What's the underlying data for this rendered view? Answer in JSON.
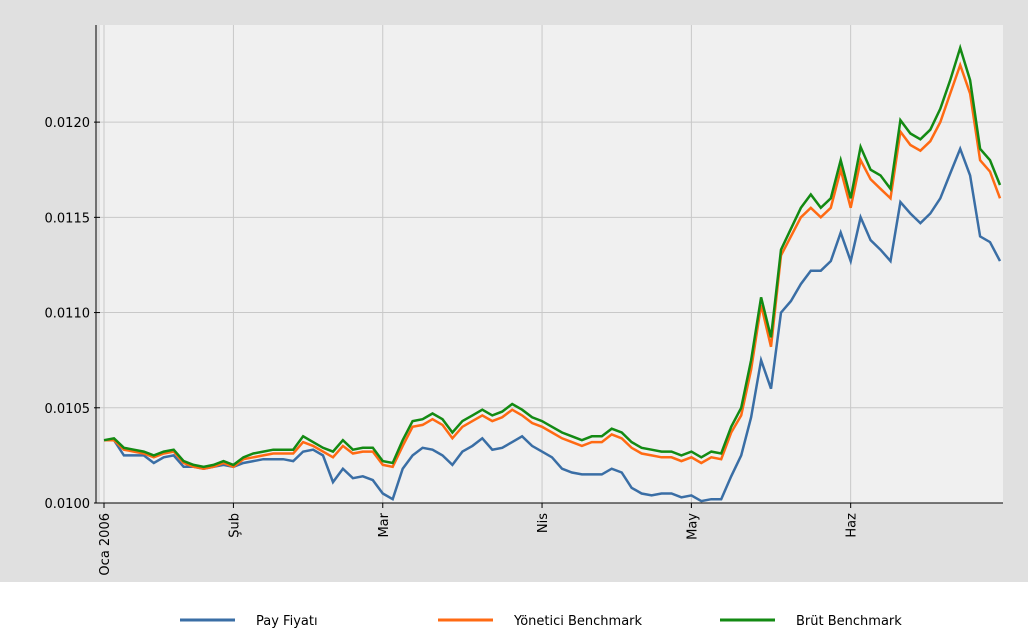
{
  "chart_data": {
    "type": "line",
    "categories": [
      "Oca 2006",
      null,
      null,
      null,
      null,
      null,
      null,
      null,
      null,
      null,
      null,
      null,
      null,
      "Şub",
      null,
      null,
      null,
      null,
      null,
      null,
      null,
      null,
      null,
      null,
      null,
      null,
      null,
      null,
      "Mar",
      null,
      null,
      null,
      null,
      null,
      null,
      null,
      null,
      null,
      null,
      null,
      null,
      null,
      null,
      null,
      "Nis",
      null,
      null,
      null,
      null,
      null,
      null,
      null,
      null,
      null,
      null,
      null,
      null,
      null,
      null,
      "May",
      null,
      null,
      null,
      null,
      null,
      null,
      null,
      null,
      null,
      null,
      null,
      null,
      null,
      null,
      null,
      "Haz",
      null,
      null,
      null,
      null,
      null,
      null,
      null,
      null,
      null,
      null,
      null,
      null,
      null,
      null,
      null
    ],
    "series": [
      {
        "name": "Pay Fiyatı",
        "color": "#3a6ea5",
        "values": [
          0.01033,
          0.01033,
          0.01025,
          0.01025,
          0.01025,
          0.01021,
          0.01024,
          0.01025,
          0.01019,
          0.01019,
          0.01018,
          0.01019,
          0.0102,
          0.01019,
          0.01021,
          0.01022,
          0.01023,
          0.01023,
          0.01023,
          0.01022,
          0.01027,
          0.01028,
          0.01025,
          0.01011,
          0.01018,
          0.01013,
          0.01014,
          0.01012,
          0.01005,
          0.01002,
          0.01018,
          0.01025,
          0.01029,
          0.01028,
          0.01025,
          0.0102,
          0.01027,
          0.0103,
          0.01034,
          0.01028,
          0.01029,
          0.01032,
          0.01035,
          0.0103,
          0.01027,
          0.01024,
          0.01018,
          0.01016,
          0.01015,
          0.01015,
          0.01015,
          0.01018,
          0.01016,
          0.01008,
          0.01005,
          0.01004,
          0.01005,
          0.01005,
          0.01003,
          0.01004,
          0.01001,
          0.01002,
          0.01002,
          0.01014,
          0.01025,
          0.01045,
          0.01075,
          0.0106,
          0.011,
          0.01106,
          0.01115,
          0.01122,
          0.01122,
          0.01127,
          0.01142,
          0.01127,
          0.0115,
          0.01138,
          0.01133,
          0.01127,
          0.01158,
          0.01152,
          0.01147,
          0.01152,
          0.0116,
          0.01173,
          0.01186,
          0.01172,
          0.0114,
          0.01137,
          0.01127
        ]
      },
      {
        "name": "Yönetici Benchmark",
        "color": "#ff6a13",
        "values": [
          0.01033,
          0.01033,
          0.01028,
          0.01027,
          0.01026,
          0.01024,
          0.01026,
          0.01027,
          0.01021,
          0.01019,
          0.01018,
          0.01019,
          0.01021,
          0.01019,
          0.01023,
          0.01024,
          0.01025,
          0.01026,
          0.01026,
          0.01026,
          0.01032,
          0.0103,
          0.01027,
          0.01024,
          0.0103,
          0.01026,
          0.01027,
          0.01027,
          0.0102,
          0.01019,
          0.0103,
          0.0104,
          0.01041,
          0.01044,
          0.01041,
          0.01034,
          0.0104,
          0.01043,
          0.01046,
          0.01043,
          0.01045,
          0.01049,
          0.01046,
          0.01042,
          0.0104,
          0.01037,
          0.01034,
          0.01032,
          0.0103,
          0.01032,
          0.01032,
          0.01036,
          0.01034,
          0.01029,
          0.01026,
          0.01025,
          0.01024,
          0.01024,
          0.01022,
          0.01024,
          0.01021,
          0.01024,
          0.01023,
          0.01037,
          0.01046,
          0.0107,
          0.01104,
          0.01082,
          0.0113,
          0.0114,
          0.0115,
          0.01155,
          0.0115,
          0.01155,
          0.01175,
          0.01155,
          0.0118,
          0.0117,
          0.01165,
          0.0116,
          0.01195,
          0.01188,
          0.01185,
          0.0119,
          0.012,
          0.01215,
          0.0123,
          0.01215,
          0.0118,
          0.01174,
          0.0116
        ]
      },
      {
        "name": "Brüt Benchmark",
        "color": "#138a13",
        "values": [
          0.01033,
          0.01034,
          0.01029,
          0.01028,
          0.01027,
          0.01025,
          0.01027,
          0.01028,
          0.01022,
          0.0102,
          0.01019,
          0.0102,
          0.01022,
          0.0102,
          0.01024,
          0.01026,
          0.01027,
          0.01028,
          0.01028,
          0.01028,
          0.01035,
          0.01032,
          0.01029,
          0.01027,
          0.01033,
          0.01028,
          0.01029,
          0.01029,
          0.01022,
          0.01021,
          0.01033,
          0.01043,
          0.01044,
          0.01047,
          0.01044,
          0.01037,
          0.01043,
          0.01046,
          0.01049,
          0.01046,
          0.01048,
          0.01052,
          0.01049,
          0.01045,
          0.01043,
          0.0104,
          0.01037,
          0.01035,
          0.01033,
          0.01035,
          0.01035,
          0.01039,
          0.01037,
          0.01032,
          0.01029,
          0.01028,
          0.01027,
          0.01027,
          0.01025,
          0.01027,
          0.01024,
          0.01027,
          0.01026,
          0.0104,
          0.0105,
          0.01075,
          0.01108,
          0.01087,
          0.01133,
          0.01144,
          0.01155,
          0.01162,
          0.01155,
          0.0116,
          0.0118,
          0.0116,
          0.01187,
          0.01175,
          0.01172,
          0.01165,
          0.01201,
          0.01194,
          0.01191,
          0.01196,
          0.01207,
          0.01222,
          0.01239,
          0.01222,
          0.01186,
          0.0118,
          0.01167
        ]
      }
    ],
    "ylim": [
      0.01,
      0.01251
    ],
    "yticks": [
      {
        "value": 0.01,
        "label": "0.0100"
      },
      {
        "value": 0.0105,
        "label": "0.0105"
      },
      {
        "value": 0.011,
        "label": "0.0110"
      },
      {
        "value": 0.0115,
        "label": "0.0115"
      },
      {
        "value": 0.012,
        "label": "0.0120"
      }
    ],
    "grid": true,
    "legend": "bottom"
  }
}
